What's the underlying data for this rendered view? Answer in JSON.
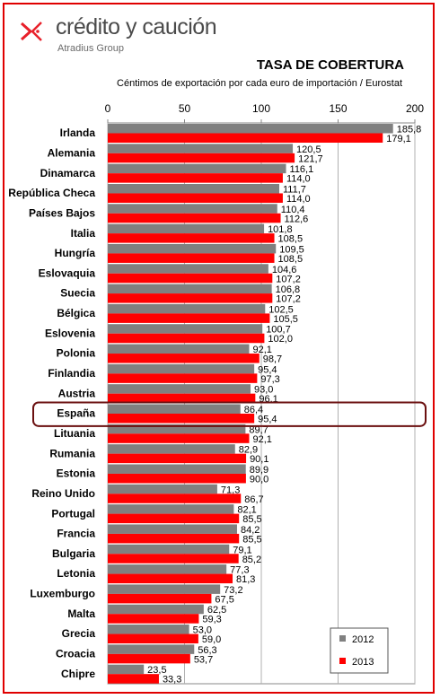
{
  "brand": {
    "name": "crédito y caución",
    "group": "Atradius Group",
    "red": "#e8202a",
    "gray": "#808080"
  },
  "chart_data": {
    "type": "bar",
    "orientation": "horizontal",
    "title": "TASA DE COBERTURA",
    "subtitle": "Céntimos de exportación por cada euro de importación / Eurostat",
    "xlim": [
      0,
      200
    ],
    "xticks": [
      0,
      50,
      100,
      150,
      200
    ],
    "grid": true,
    "legend_position": "bottom-right",
    "highlight": "España",
    "categories": [
      "Irlanda",
      "Alemania",
      "Dinamarca",
      "República Checa",
      "Países Bajos",
      "Italia",
      "Hungría",
      "Eslovaquia",
      "Suecia",
      "Bélgica",
      "Eslovenia",
      "Polonia",
      "Finlandia",
      "Austria",
      "España",
      "Lituania",
      "Rumania",
      "Estonia",
      "Reino Unido",
      "Portugal",
      "Francia",
      "Bulgaria",
      "Letonia",
      "Luxemburgo",
      "Malta",
      "Grecia",
      "Croacia",
      "Chipre"
    ],
    "series": [
      {
        "name": "2012",
        "color": "#808080",
        "values": [
          185.8,
          120.5,
          116.1,
          111.7,
          110.4,
          101.8,
          109.5,
          104.6,
          106.8,
          102.5,
          100.7,
          92.1,
          95.4,
          93.0,
          86.4,
          89.7,
          82.9,
          89.9,
          71.3,
          82.1,
          84.2,
          79.1,
          77.3,
          73.2,
          62.5,
          53.0,
          56.3,
          23.5
        ],
        "labels": [
          "185,8",
          "120,5",
          "116,1",
          "111,7",
          "110,4",
          "101,8",
          "109,5",
          "104,6",
          "106,8",
          "102,5",
          "100,7",
          "92,1",
          "95,4",
          "93,0",
          "86,4",
          "89,7",
          "82,9",
          "89,9",
          "71,3",
          "82,1",
          "84,2",
          "79,1",
          "77,3",
          "73,2",
          "62,5",
          "53,0",
          "56,3",
          "23,5"
        ]
      },
      {
        "name": "2013",
        "color": "#ff0000",
        "values": [
          179.1,
          121.7,
          114.0,
          114.0,
          112.6,
          108.5,
          108.5,
          107.2,
          107.2,
          105.5,
          102.0,
          98.7,
          97.3,
          96.1,
          95.4,
          92.1,
          90.1,
          90.0,
          86.7,
          85.5,
          85.5,
          85.2,
          81.3,
          67.5,
          59.3,
          59.0,
          53.7,
          33.3
        ],
        "labels": [
          "179,1",
          "121,7",
          "114,0",
          "114,0",
          "112,6",
          "108,5",
          "108,5",
          "107,2",
          "107,2",
          "105,5",
          "102,0",
          "98,7",
          "97,3",
          "96,1",
          "95,4",
          "92,1",
          "90,1",
          "90,0",
          "86,7",
          "85,5",
          "85,5",
          "85,2",
          "81,3",
          "67,5",
          "59,3",
          "59,0",
          "53,7",
          "33,3"
        ]
      }
    ]
  }
}
